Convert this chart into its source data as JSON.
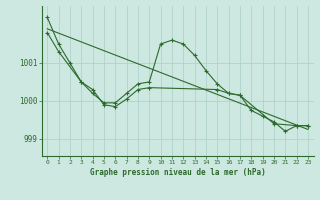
{
  "line1_x": [
    0,
    1,
    2,
    3,
    4,
    5,
    6,
    7,
    8,
    9,
    10,
    11,
    12,
    13,
    14,
    15,
    16,
    17,
    18,
    19,
    20,
    21,
    22,
    23
  ],
  "line1_y": [
    1002.2,
    1001.5,
    1001.0,
    1000.5,
    1000.2,
    999.95,
    999.95,
    1000.2,
    1000.45,
    1000.5,
    1001.5,
    1001.6,
    1001.5,
    1001.2,
    1000.8,
    1000.45,
    1000.2,
    1000.15,
    999.75,
    999.6,
    999.45,
    999.2,
    999.35,
    999.35
  ],
  "line2_x": [
    0,
    1,
    3,
    4,
    5,
    6,
    7,
    8,
    9,
    15,
    16,
    17,
    20,
    22,
    23
  ],
  "line2_y": [
    1001.8,
    1001.3,
    1000.5,
    1000.3,
    999.9,
    999.85,
    1000.05,
    1000.3,
    1000.35,
    1000.3,
    1000.2,
    1000.15,
    999.4,
    999.35,
    999.35
  ],
  "line3_x": [
    0,
    23
  ],
  "line3_y": [
    1001.9,
    999.25
  ],
  "line_color": "#2d6a2d",
  "bg_color": "#cce8e0",
  "grid_color": "#aacfc8",
  "xlabel": "Graphe pression niveau de la mer (hPa)",
  "yticks": [
    999,
    1000,
    1001
  ],
  "xticks": [
    0,
    1,
    2,
    3,
    4,
    5,
    6,
    7,
    8,
    9,
    10,
    11,
    12,
    13,
    14,
    15,
    16,
    17,
    18,
    19,
    20,
    21,
    22,
    23
  ],
  "xlim": [
    -0.5,
    23.5
  ],
  "ylim": [
    998.55,
    1002.5
  ]
}
